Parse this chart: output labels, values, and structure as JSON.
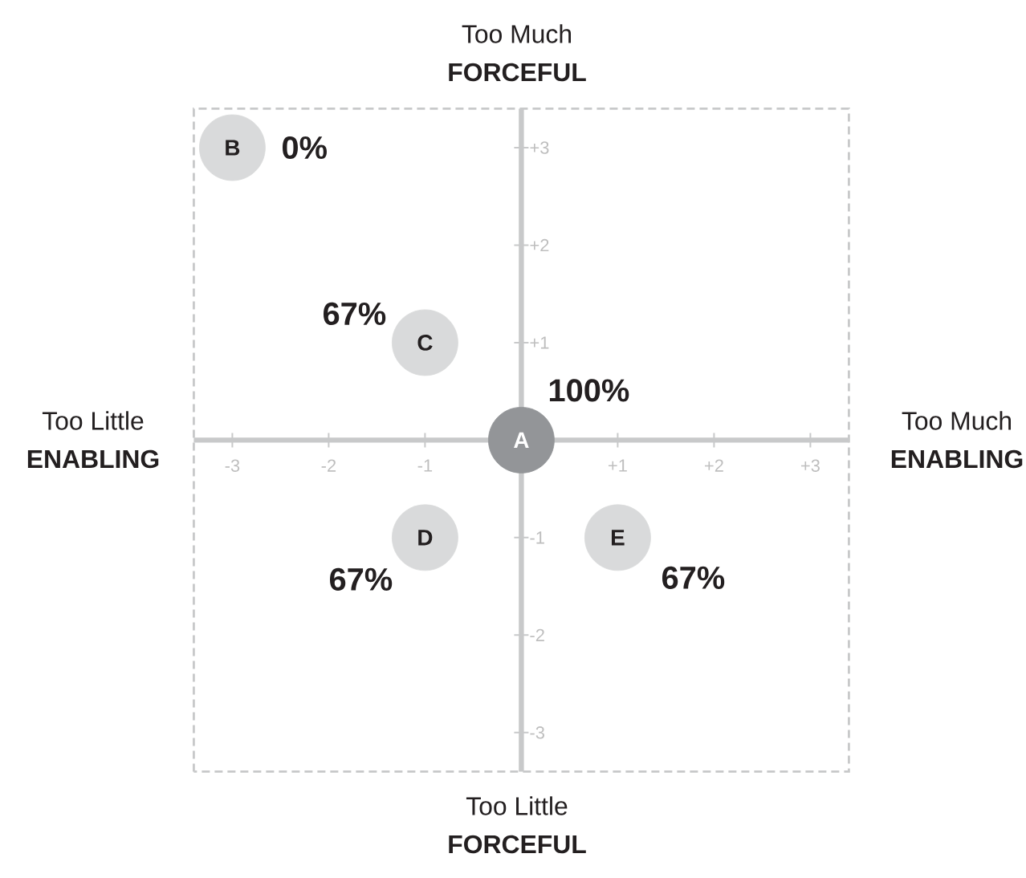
{
  "chart_data": {
    "type": "scatter",
    "series": [
      {
        "colors": [
          "#939598",
          "#d9dadb",
          "#d9dadb",
          "#d9dadb",
          "#d9dadb"
        ],
        "x": [
          0,
          -3,
          -1,
          -1,
          1
        ],
        "values": [
          0,
          3,
          1,
          -1,
          -1
        ]
      }
    ],
    "xlim": [
      -3.4,
      3.4
    ],
    "ylim": [
      -3.4,
      3.4
    ],
    "xticks": [
      -3,
      -2,
      -1,
      {
        "value": 1,
        "label": "+1"
      },
      {
        "value": 2,
        "label": "+2"
      },
      {
        "value": 3,
        "label": "+3"
      }
    ],
    "yticks": [
      -3,
      -2,
      -1,
      {
        "value": 1,
        "label": "+1"
      },
      {
        "value": 2,
        "label": "+2"
      },
      {
        "value": 3,
        "label": "+3"
      }
    ],
    "grid": false,
    "legend": false,
    "annotations": [
      "Too Much",
      "FORCEFUL",
      "Too Little",
      "FORCEFUL",
      "Too Little",
      "ENABLING",
      "Too Much",
      "ENABLING",
      {
        "text": "A",
        "x": 0,
        "y": 0
      },
      {
        "text": "B",
        "x": -3,
        "y": 3
      },
      {
        "text": "C",
        "x": -1,
        "y": 1
      },
      {
        "text": "D",
        "x": -1,
        "y": -1
      },
      {
        "text": "E",
        "x": 1,
        "y": -1
      },
      {
        "text": "100%",
        "x": 0,
        "y": 0
      },
      {
        "text": "0%",
        "x": -3,
        "y": 3
      },
      {
        "text": "67%",
        "x": -1,
        "y": 1
      },
      {
        "text": "67%",
        "x": -1,
        "y": -1
      },
      {
        "text": "67%",
        "x": 1,
        "y": -1
      }
    ]
  }
}
